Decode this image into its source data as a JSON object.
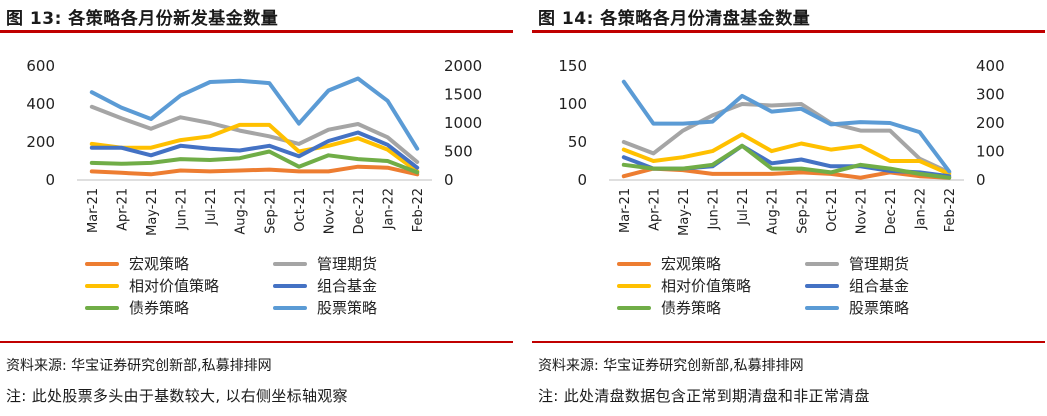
{
  "panels": [
    {
      "title": "图 13:  各策略各月份新发基金数量",
      "source": "资料来源:  华宝证券研究创新部,私募排排网",
      "note": "注:  此处股票多头由于基数较大,  以右侧坐标轴观察"
    },
    {
      "title": "图 14:  各策略各月份清盘基金数量",
      "source": "资料来源:  华宝证券研究创新部,私募排排网",
      "note": "注:  此处清盘数据包含正常到期清盘和非正常清盘"
    }
  ],
  "chart_data": [
    {
      "type": "line",
      "title": "",
      "categories": [
        "Mar-21",
        "Apr-21",
        "May-21",
        "Jun-21",
        "Jul-21",
        "Aug-21",
        "Sep-21",
        "Oct-21",
        "Nov-21",
        "Dec-21",
        "Jan-22",
        "Feb-22"
      ],
      "ylim_left": [
        0,
        600
      ],
      "yticks_left": [
        "0",
        "200",
        "400",
        "600"
      ],
      "ylim_right": [
        0,
        2000
      ],
      "yticks_right": [
        "0",
        "500",
        "1000",
        "1500",
        "2000"
      ],
      "grid": false,
      "legend_position": "bottom",
      "series": [
        {
          "name": "宏观策略",
          "color": "#ed7d31",
          "axis": "left",
          "values": [
            45,
            38,
            30,
            50,
            45,
            50,
            55,
            45,
            45,
            70,
            65,
            30
          ]
        },
        {
          "name": "管理期货",
          "color": "#a5a5a5",
          "axis": "left",
          "values": [
            385,
            325,
            270,
            330,
            300,
            260,
            230,
            190,
            265,
            295,
            225,
            95
          ]
        },
        {
          "name": "相对价值策略",
          "color": "#ffc000",
          "axis": "left",
          "values": [
            190,
            170,
            170,
            210,
            230,
            290,
            290,
            150,
            180,
            220,
            160,
            45
          ]
        },
        {
          "name": "组合基金",
          "color": "#4472c4",
          "axis": "left",
          "values": [
            170,
            170,
            130,
            180,
            165,
            155,
            180,
            125,
            205,
            250,
            185,
            65
          ]
        },
        {
          "name": "债券策略",
          "color": "#70ad47",
          "axis": "left",
          "values": [
            90,
            85,
            90,
            110,
            105,
            115,
            150,
            70,
            130,
            110,
            100,
            40
          ]
        },
        {
          "name": "股票策略",
          "color": "#5b9bd5",
          "axis": "right",
          "values": [
            1540,
            1270,
            1070,
            1480,
            1720,
            1740,
            1700,
            990,
            1570,
            1780,
            1390,
            550
          ]
        }
      ]
    },
    {
      "type": "line",
      "title": "",
      "categories": [
        "Mar-21",
        "Apr-21",
        "May-21",
        "Jun-21",
        "Jul-21",
        "Aug-21",
        "Sep-21",
        "Oct-21",
        "Nov-21",
        "Dec-21",
        "Jan-22",
        "Feb-22"
      ],
      "ylim_left": [
        0,
        150
      ],
      "yticks_left": [
        "0",
        "50",
        "100",
        "150"
      ],
      "ylim_right": [
        0,
        400
      ],
      "yticks_right": [
        "0",
        "100",
        "200",
        "300",
        "400"
      ],
      "grid": false,
      "legend_position": "bottom",
      "series": [
        {
          "name": "宏观策略",
          "color": "#ed7d31",
          "axis": "left",
          "values": [
            5,
            15,
            13,
            8,
            8,
            8,
            10,
            8,
            3,
            10,
            5,
            3
          ]
        },
        {
          "name": "管理期货",
          "color": "#a5a5a5",
          "axis": "left",
          "values": [
            50,
            35,
            65,
            85,
            100,
            98,
            100,
            75,
            65,
            65,
            28,
            10
          ]
        },
        {
          "name": "相对价值策略",
          "color": "#ffc000",
          "axis": "left",
          "values": [
            40,
            25,
            30,
            38,
            60,
            38,
            48,
            40,
            45,
            25,
            25,
            8
          ]
        },
        {
          "name": "组合基金",
          "color": "#4472c4",
          "axis": "left",
          "values": [
            30,
            15,
            15,
            18,
            45,
            22,
            27,
            18,
            18,
            12,
            10,
            5
          ]
        },
        {
          "name": "债券策略",
          "color": "#70ad47",
          "axis": "left",
          "values": [
            20,
            15,
            15,
            20,
            45,
            15,
            15,
            10,
            20,
            15,
            8,
            3
          ]
        },
        {
          "name": "股票策略",
          "color": "#5b9bd5",
          "axis": "right",
          "values": [
            345,
            198,
            198,
            205,
            295,
            240,
            250,
            195,
            203,
            200,
            168,
            30
          ]
        }
      ]
    }
  ]
}
